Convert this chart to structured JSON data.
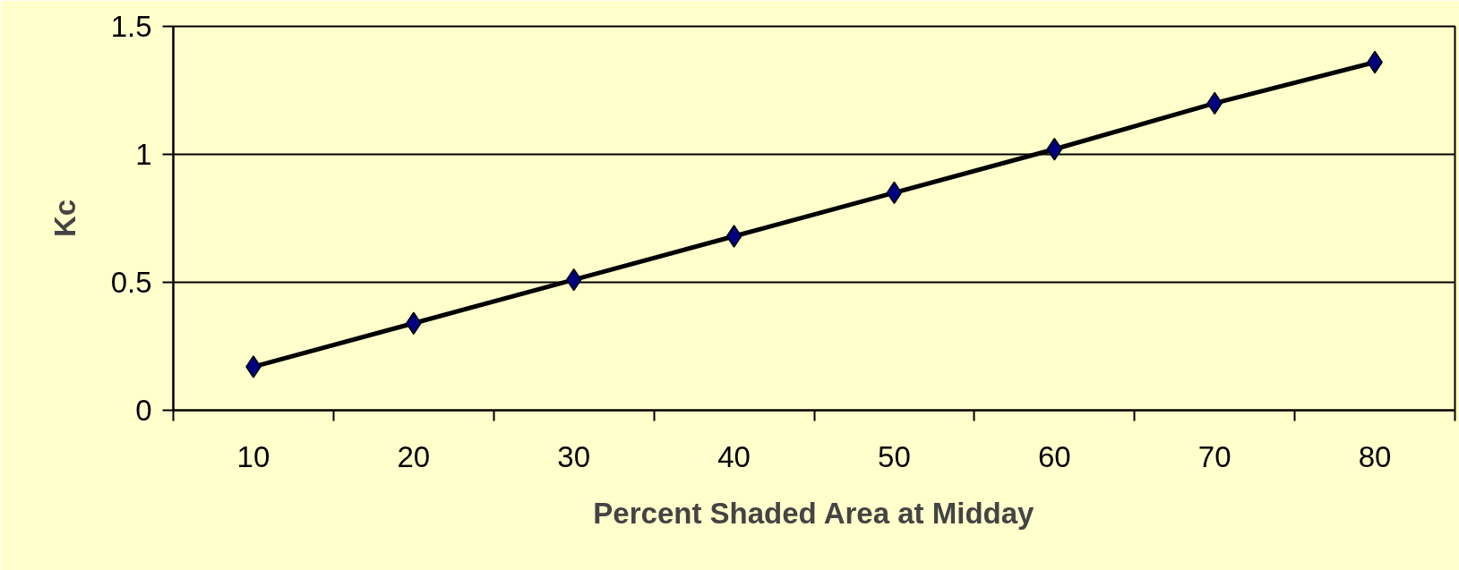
{
  "chart_data": {
    "type": "line",
    "xlabel": "Percent Shaded Area at Midday",
    "ylabel": "Kc",
    "categories": [
      "10",
      "20",
      "30",
      "40",
      "50",
      "60",
      "70",
      "80"
    ],
    "series": [
      {
        "color": "#000000",
        "values": [
          0.17,
          0.34,
          0.51,
          0.68,
          0.85,
          1.02,
          1.2,
          1.36
        ]
      }
    ],
    "ylim": [
      0,
      1.5
    ],
    "yticks": [
      0,
      0.5,
      1,
      1.5
    ],
    "grid": "y",
    "marker": "diamond",
    "line_style": "solid"
  }
}
